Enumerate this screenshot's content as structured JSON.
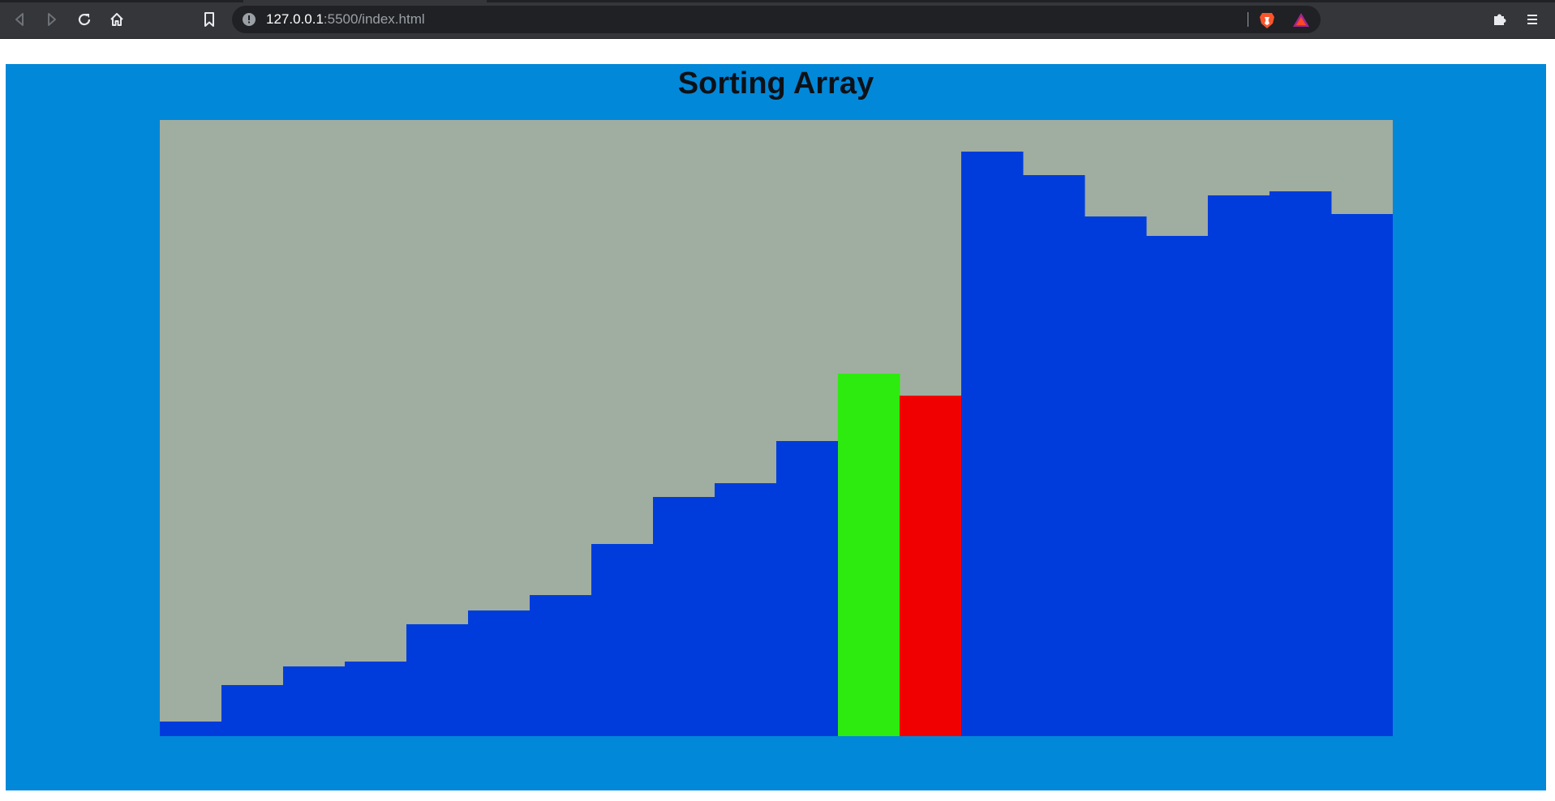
{
  "browser": {
    "url_host": "127.0.0.1",
    "url_path": ":5500/index.html",
    "icons": {
      "back": "back-icon",
      "forward": "forward-icon",
      "reload": "reload-icon",
      "home": "home-icon",
      "bookmark": "bookmark-icon",
      "site_info": "info-icon",
      "brave_shield": "brave-shield-icon",
      "rewards": "rewards-triangle-icon",
      "extensions": "puzzle-icon",
      "menu": "menu-icon"
    }
  },
  "page": {
    "title": "Sorting Array"
  },
  "colors": {
    "panel_background": "#0288d8",
    "chart_background": "#a0ada1",
    "bar_default": "#003cdb",
    "bar_compare_a": "#2deb0e",
    "bar_compare_b": "#f00000"
  },
  "chart_data": {
    "type": "bar",
    "title": "Sorting Array",
    "xlabel": "",
    "ylabel": "",
    "ylim": [
      0,
      760
    ],
    "grid": false,
    "legend": "none",
    "values": [
      18,
      63,
      86,
      92,
      138,
      155,
      174,
      237,
      295,
      312,
      364,
      447,
      420,
      721,
      692,
      641,
      617,
      667,
      672,
      644
    ],
    "bar_states": [
      "default",
      "default",
      "default",
      "default",
      "default",
      "default",
      "default",
      "default",
      "default",
      "default",
      "default",
      "compare_a",
      "compare_b",
      "default",
      "default",
      "default",
      "default",
      "default",
      "default",
      "default"
    ]
  }
}
